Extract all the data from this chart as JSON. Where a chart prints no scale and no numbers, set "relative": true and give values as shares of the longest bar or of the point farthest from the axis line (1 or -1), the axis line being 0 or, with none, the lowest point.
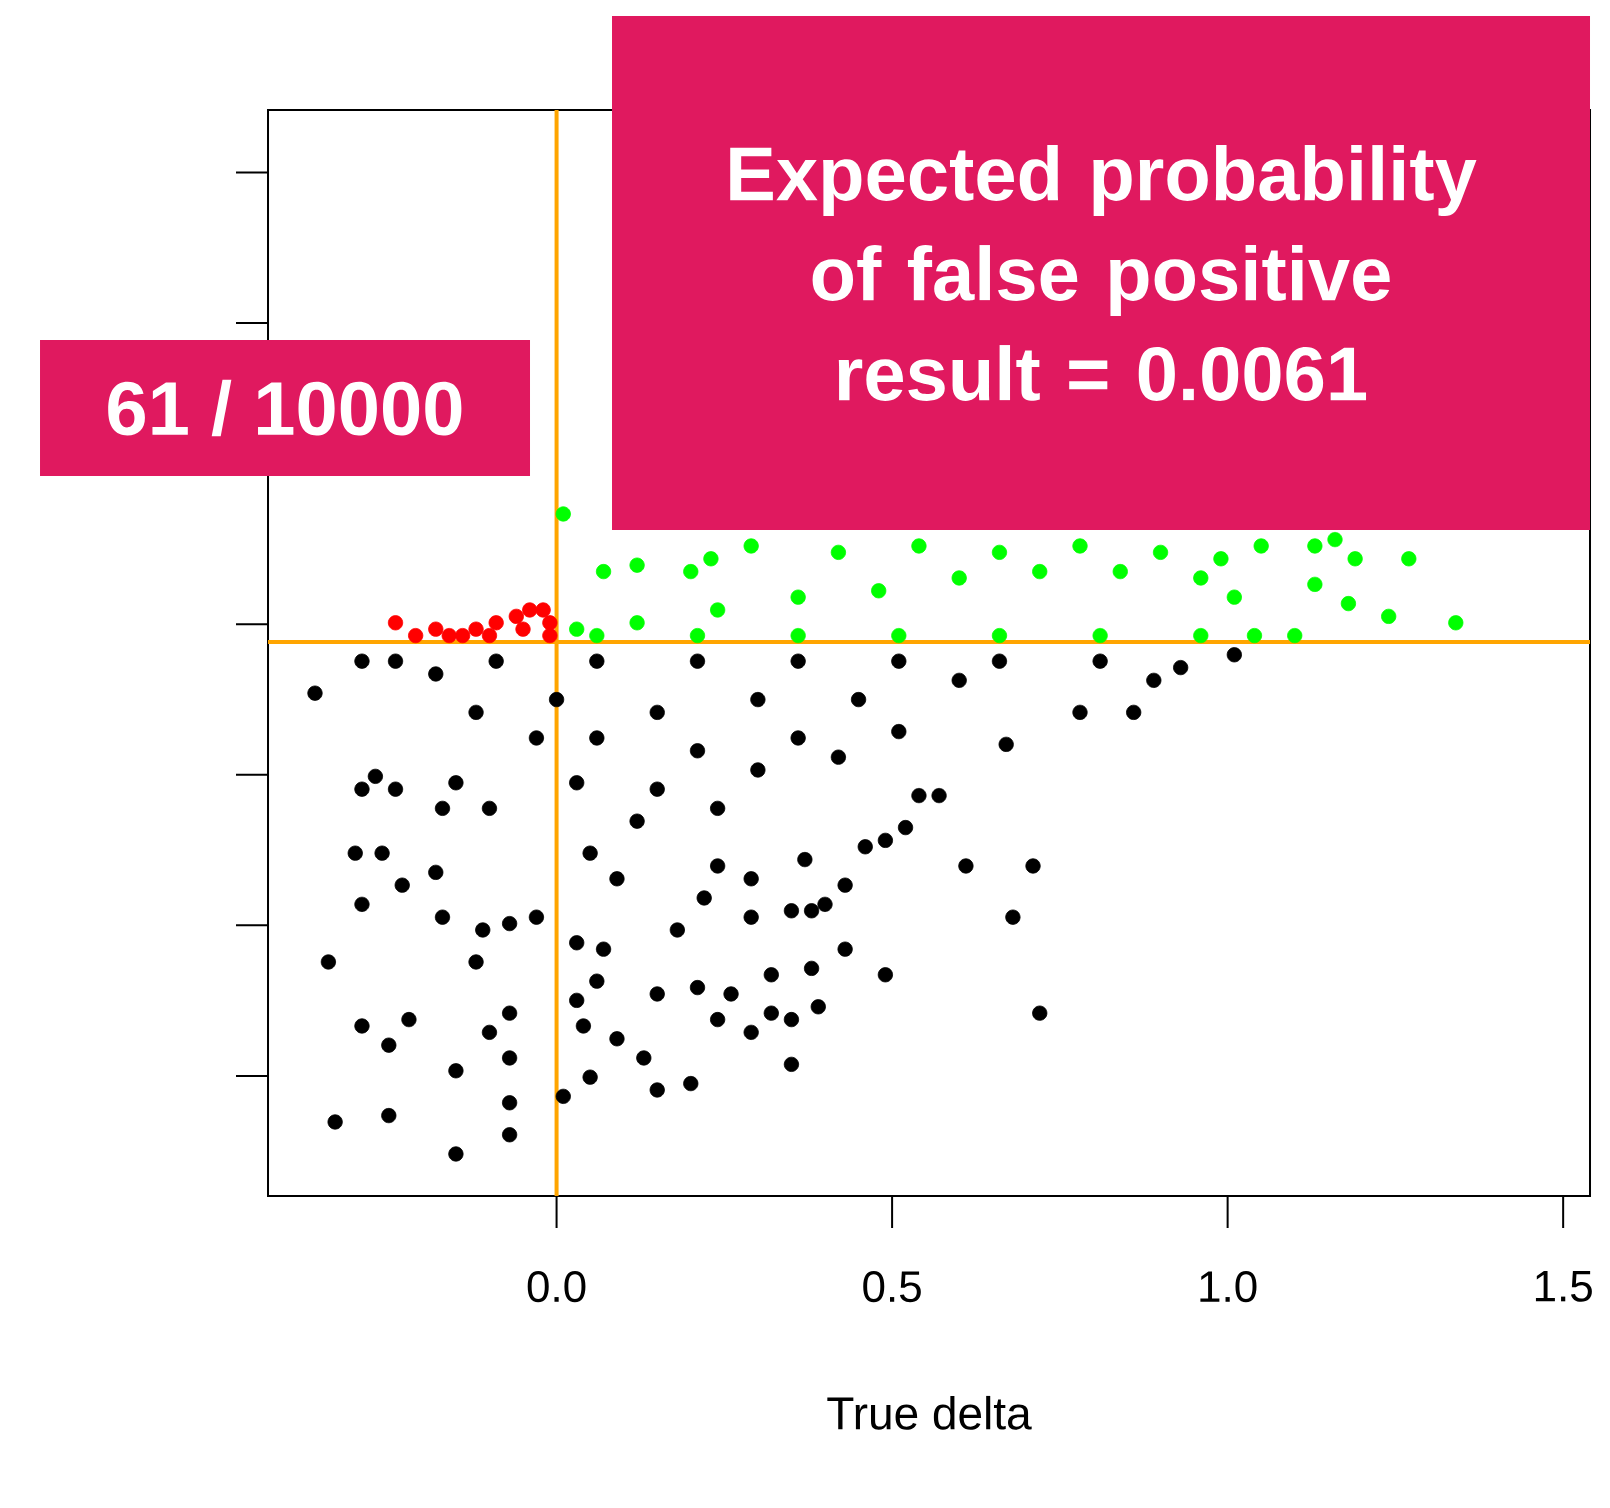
{
  "chart_data": {
    "type": "scatter",
    "xlabel": "True delta",
    "relative": true,
    "marker": "circle",
    "tick_labels": "x",
    "xlim": [
      -0.43,
      1.54
    ],
    "xticks": [
      {
        "value": 0,
        "label": "0.0"
      },
      {
        "value": 0.5,
        "label": "0.5"
      },
      {
        "value": 1,
        "label": "1.0"
      },
      {
        "value": 1.5,
        "label": "1.5"
      }
    ],
    "series": [
      {
        "color": "#000000",
        "x": [
          -0.36,
          -0.33,
          -0.25,
          -0.15,
          -0.07,
          -0.07,
          -0.29,
          -0.25,
          -0.22,
          -0.34,
          -0.15,
          -0.07,
          -0.1,
          -0.07,
          -0.12,
          -0.3,
          -0.26,
          -0.23,
          -0.18,
          -0.29,
          -0.29,
          -0.27,
          -0.24,
          -0.17,
          -0.15,
          -0.1,
          -0.07,
          -0.03,
          -0.11,
          -0.17,
          0.01,
          0.05,
          0.15,
          0.2,
          0.13,
          0.04,
          0.09,
          0.03,
          0.06,
          0.15,
          0.21,
          0.26,
          0.24,
          0.29,
          0.32,
          0.35,
          0.35,
          0.39,
          0.38,
          0.32,
          0.43,
          0.49,
          0.18,
          0.29,
          0.35,
          0.38,
          0.4,
          0.43,
          0.07,
          0.03,
          0.09,
          0.05,
          0.22,
          0.24,
          0.29,
          0.37,
          0.46,
          0.49,
          0.52,
          0.54,
          0.72,
          0.68,
          0.61,
          0.71,
          0.57,
          0.67,
          0.86,
          0.78,
          0.89,
          1.01,
          0.93,
          -0.29,
          -0.24,
          -0.18,
          -0.09,
          0.06,
          0.21,
          0.36,
          0.51,
          0.66,
          0.81,
          -0.12,
          0.0,
          0.15,
          0.3,
          0.45,
          0.6,
          -0.03,
          0.06,
          0.21,
          0.36,
          0.51,
          0.03,
          0.15,
          0.3,
          0.42,
          0.12,
          0.24
        ],
        "values": [
          0.72,
          0.05,
          0.06,
          0,
          0.03,
          0.08,
          0.2,
          0.17,
          0.21,
          0.3,
          0.13,
          0.15,
          0.19,
          0.22,
          0.3,
          0.47,
          0.47,
          0.42,
          0.44,
          0.39,
          0.57,
          0.59,
          0.57,
          0.54,
          0.58,
          0.54,
          0.36,
          0.37,
          0.35,
          0.37,
          0.09,
          0.12,
          0.1,
          0.11,
          0.15,
          0.2,
          0.18,
          0.24,
          0.27,
          0.25,
          0.26,
          0.25,
          0.21,
          0.19,
          0.22,
          0.14,
          0.21,
          0.23,
          0.29,
          0.28,
          0.32,
          0.28,
          0.35,
          0.37,
          0.38,
          0.38,
          0.39,
          0.42,
          0.32,
          0.33,
          0.43,
          0.47,
          0.4,
          0.45,
          0.43,
          0.46,
          0.48,
          0.49,
          0.51,
          0.56,
          0.22,
          0.37,
          0.45,
          0.45,
          0.56,
          0.64,
          0.69,
          0.69,
          0.74,
          0.78,
          0.76,
          0.77,
          0.77,
          0.75,
          0.77,
          0.77,
          0.77,
          0.77,
          0.77,
          0.77,
          0.77,
          0.69,
          0.71,
          0.69,
          0.71,
          0.71,
          0.74,
          0.65,
          0.65,
          0.63,
          0.65,
          0.66,
          0.58,
          0.57,
          0.6,
          0.62,
          0.52,
          0.54
        ]
      },
      {
        "color": "#00ff00",
        "x": [
          1.34,
          1.27,
          1.24,
          1.19,
          1.16,
          1.13,
          1.13,
          1.18,
          1.1,
          1.05,
          0.01,
          0.07,
          0.12,
          0.2,
          0.23,
          0.29,
          0.03,
          0.12,
          0.24,
          0.36,
          0.48,
          0.6,
          0.72,
          0.84,
          0.96,
          1.01,
          0.06,
          0.21,
          0.36,
          0.51,
          0.66,
          0.81,
          0.96,
          1.04,
          0.42,
          0.54,
          0.66,
          0.78,
          0.9,
          0.99
        ],
        "values": [
          0.83,
          0.93,
          0.84,
          0.93,
          0.96,
          0.95,
          0.89,
          0.86,
          0.81,
          0.95,
          1.0,
          0.91,
          0.92,
          0.91,
          0.93,
          0.95,
          0.82,
          0.83,
          0.85,
          0.87,
          0.88,
          0.9,
          0.91,
          0.91,
          0.9,
          0.87,
          0.81,
          0.81,
          0.81,
          0.81,
          0.81,
          0.81,
          0.81,
          0.81,
          0.94,
          0.95,
          0.94,
          0.95,
          0.94,
          0.93
        ]
      },
      {
        "color": "#ff0000",
        "x": [
          -0.24,
          -0.21,
          -0.18,
          -0.14,
          -0.12,
          -0.09,
          -0.06,
          -0.04,
          -0.02,
          -0.01,
          -0.05,
          -0.01,
          -0.1,
          -0.16
        ],
        "values": [
          0.83,
          0.81,
          0.82,
          0.81,
          0.82,
          0.83,
          0.84,
          0.85,
          0.85,
          0.83,
          0.82,
          0.81,
          0.81,
          0.81
        ]
      }
    ],
    "ref_lines": [
      {
        "axis": "x",
        "value": 0,
        "color": "#ffa500"
      },
      {
        "axis": "y",
        "value": 0.8,
        "color": "#ffa500"
      }
    ],
    "annotations": [
      "61 / 10000",
      "Expected probability of false positive result = 0.0061"
    ]
  }
}
